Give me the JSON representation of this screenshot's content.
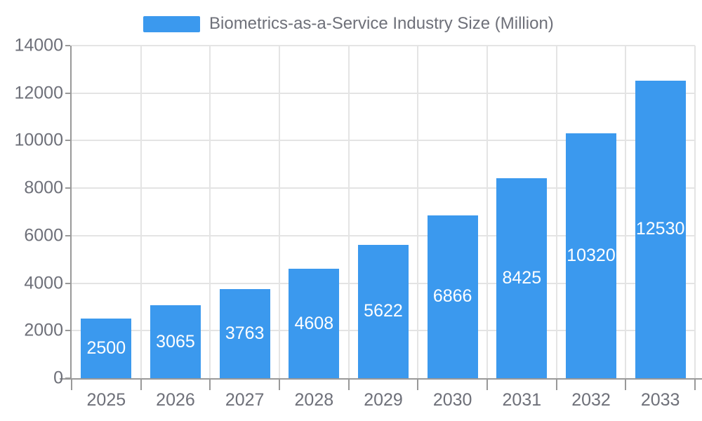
{
  "chart_data": {
    "type": "bar",
    "title": "Biometrics-as-a-Service Industry Size (Million)",
    "categories": [
      "2025",
      "2026",
      "2027",
      "2028",
      "2029",
      "2030",
      "2031",
      "2032",
      "2033"
    ],
    "values": [
      2500,
      3065,
      3763,
      4608,
      5622,
      6866,
      8425,
      10320,
      12530
    ],
    "xlabel": "",
    "ylabel": "",
    "ylim": [
      0,
      14000
    ],
    "yticks": [
      0,
      2000,
      4000,
      6000,
      8000,
      10000,
      12000,
      14000
    ],
    "grid": true,
    "legend_position": "top",
    "value_labels": "inside-center",
    "colors": {
      "bar": "#3B99EE",
      "bar_label": "#FFFFFF",
      "axis_line": "#999999",
      "grid_line": "#E4E4E4",
      "tick_text": "#6E7079",
      "background": "#FFFFFF"
    }
  }
}
